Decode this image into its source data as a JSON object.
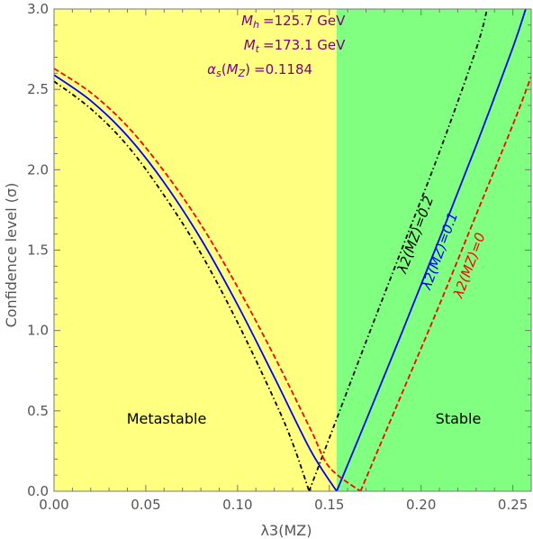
{
  "chart_data": {
    "type": "line",
    "xlabel": "λ3(MZ)",
    "ylabel": "Confidence level (σ)",
    "xlim": [
      0.0,
      0.26
    ],
    "ylim": [
      0.0,
      3.0
    ],
    "x_ticks": [
      "0.00",
      "0.05",
      "0.10",
      "0.15",
      "0.20",
      "0.25"
    ],
    "x_tick_values": [
      0.0,
      0.05,
      0.1,
      0.15,
      0.2,
      0.25
    ],
    "y_ticks": [
      "0.0",
      "0.5",
      "1.0",
      "1.5",
      "2.0",
      "2.5",
      "3.0"
    ],
    "y_tick_values": [
      0.0,
      0.5,
      1.0,
      1.5,
      2.0,
      2.5,
      3.0
    ],
    "grid": false,
    "regions": [
      {
        "name": "Metastable",
        "x_range": [
          0.0,
          0.154
        ],
        "color": "#ffff80"
      },
      {
        "name": "Stable",
        "x_range": [
          0.154,
          0.26
        ],
        "color": "#80ff80"
      }
    ],
    "parameters": {
      "mh": "125.7 GeV",
      "mt": "173.1 GeV",
      "alphas": "0.1184"
    },
    "param_color": "#800080",
    "series": [
      {
        "name": "λ2(MZ)=0.2",
        "color": "#000000",
        "style": "dash-dot",
        "x": [
          0.0,
          0.02,
          0.04,
          0.06,
          0.08,
          0.1,
          0.12,
          0.13,
          0.139,
          0.15,
          0.17,
          0.19,
          0.21,
          0.23,
          0.236
        ],
        "y": [
          2.55,
          2.38,
          2.15,
          1.84,
          1.48,
          1.05,
          0.57,
          0.3,
          0.0,
          0.33,
          0.93,
          1.52,
          2.11,
          2.75,
          3.0
        ]
      },
      {
        "name": "λ2(MZ)=0.1",
        "color": "#0000ff",
        "style": "solid",
        "x": [
          0.0,
          0.02,
          0.04,
          0.06,
          0.08,
          0.1,
          0.12,
          0.14,
          0.154,
          0.17,
          0.19,
          0.21,
          0.23,
          0.25,
          0.257
        ],
        "y": [
          2.59,
          2.43,
          2.21,
          1.92,
          1.57,
          1.16,
          0.71,
          0.25,
          0.0,
          0.44,
          1.0,
          1.57,
          2.15,
          2.76,
          3.0
        ]
      },
      {
        "name": "λ2(MZ)=0",
        "color": "#ff0000",
        "style": "dashed",
        "x": [
          0.0,
          0.02,
          0.04,
          0.06,
          0.08,
          0.1,
          0.12,
          0.14,
          0.15,
          0.167,
          0.19,
          0.21,
          0.23,
          0.25,
          0.26
        ],
        "y": [
          2.63,
          2.48,
          2.27,
          1.99,
          1.66,
          1.27,
          0.84,
          0.38,
          0.15,
          0.0,
          0.62,
          1.16,
          1.72,
          2.28,
          2.58
        ]
      }
    ]
  }
}
